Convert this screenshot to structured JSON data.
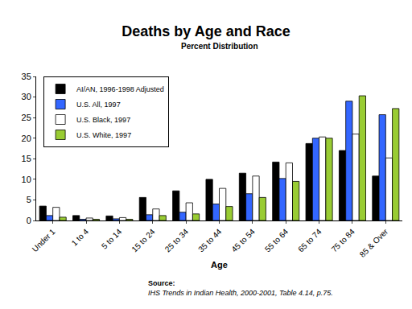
{
  "chart_data": {
    "type": "bar",
    "title": "Deaths by Age and Race",
    "subtitle": "Percent Distribution",
    "x_label": "Age",
    "annotations": [
      "Source:",
      "IHS Trends in Indian Health, 2000-2001, Table 4.14, p.75."
    ],
    "categories": [
      "Under 1",
      "1 to 4",
      "5 to 14",
      "15 to 24",
      "25 to 34",
      "35 to 44",
      "45 to 54",
      "55 to 64",
      "65 to 74",
      "75 to 84",
      "85 & Over"
    ],
    "series": [
      {
        "name": "AI/AN, 1996-1998 Adjusted",
        "color": "#000000",
        "values": [
          3.5,
          1.2,
          1.1,
          5.6,
          7.2,
          10.0,
          11.5,
          14.2,
          18.7,
          17.0,
          10.8
        ]
      },
      {
        "name": "U.S. All, 1997",
        "color": "#3366ff",
        "values": [
          1.2,
          0.3,
          0.4,
          1.4,
          2.0,
          4.0,
          6.5,
          10.2,
          20.0,
          29.0,
          25.7
        ]
      },
      {
        "name": "U.S. Black, 1997",
        "color": "#ffffff",
        "values": [
          3.2,
          0.6,
          0.7,
          2.8,
          4.3,
          7.8,
          10.8,
          14.0,
          20.3,
          21.0,
          15.2
        ]
      },
      {
        "name": "U.S. White, 1997",
        "color": "#99cc33",
        "values": [
          0.8,
          0.3,
          0.3,
          1.2,
          1.6,
          3.4,
          5.6,
          9.5,
          20.0,
          30.3,
          27.2
        ]
      }
    ],
    "ylim": [
      0,
      35
    ],
    "yticks": [
      0,
      5,
      10,
      15,
      20,
      25,
      30,
      35
    ],
    "grid": false,
    "legend": "upper left"
  }
}
